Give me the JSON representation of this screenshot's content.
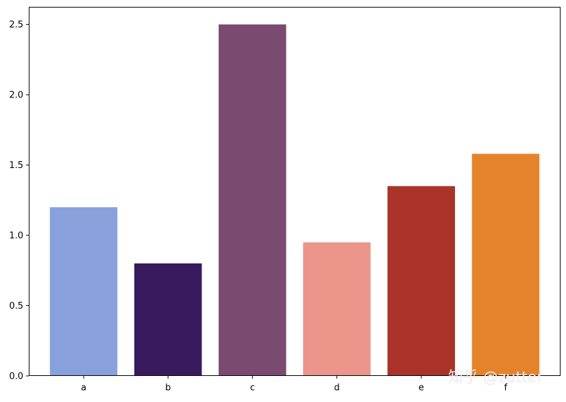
{
  "chart_data": {
    "type": "bar",
    "categories": [
      "a",
      "b",
      "c",
      "d",
      "e",
      "f"
    ],
    "values": [
      1.2,
      0.8,
      2.5,
      0.95,
      1.35,
      1.58
    ],
    "colors": [
      "#88a1dc",
      "#3a1a5e",
      "#7a4a70",
      "#ec958b",
      "#a93229",
      "#e5832a"
    ],
    "ylim": [
      0,
      2.625
    ],
    "yticks": [
      "0.0",
      "0.5",
      "1.0",
      "1.5",
      "2.0",
      "2.5"
    ],
    "title": "",
    "xlabel": "",
    "ylabel": "",
    "grid": false
  },
  "watermark": "知乎 @zutter"
}
